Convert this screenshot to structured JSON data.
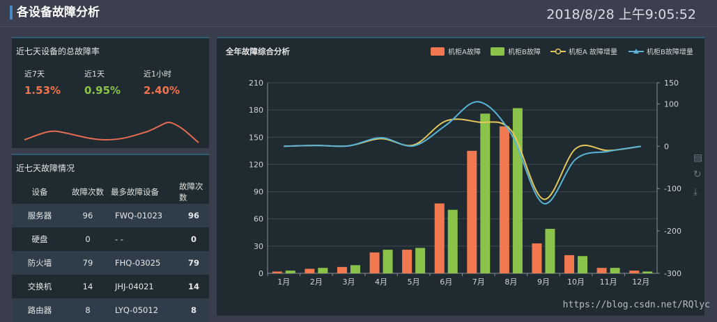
{
  "header": {
    "title": "各设备故障分析",
    "clock": "2018/8/28 上午9:05:52"
  },
  "rate_panel": {
    "title": "近七天设备的总故障率",
    "rates": [
      {
        "label": "近7天",
        "value": "1.53%",
        "color": "#f2734d"
      },
      {
        "label": "近1天",
        "value": "0.95%",
        "color": "#8bc34a"
      },
      {
        "label": "近1小时",
        "value": "2.40%",
        "color": "#f2734d"
      }
    ],
    "sparkline_color": "#e66c52"
  },
  "fault_panel": {
    "title": "近七天故障情况",
    "headers": [
      "设备",
      "故障次数",
      "最多故障设备",
      "故障次数"
    ],
    "rows": [
      {
        "device": "服务器",
        "count": "96",
        "top_device": "FWQ-01023",
        "top_count": "96"
      },
      {
        "device": "硬盘",
        "count": "0",
        "top_device": "- -",
        "top_count": "0"
      },
      {
        "device": "防火墙",
        "count": "79",
        "top_device": "FHQ-03025",
        "top_count": "79"
      },
      {
        "device": "交换机",
        "count": "14",
        "top_device": "JHJ-04021",
        "top_count": "14"
      },
      {
        "device": "路由器",
        "count": "8",
        "top_device": "LYQ-05012",
        "top_count": "8"
      }
    ]
  },
  "chart_panel": {
    "title": "全年故障综合分析"
  },
  "watermark": "https://blog.csdn.net/RQlyc",
  "chart_data": {
    "type": "bar",
    "categories": [
      "1月",
      "2月",
      "3月",
      "4月",
      "5月",
      "6月",
      "7月",
      "8月",
      "9月",
      "10月",
      "11月",
      "12月"
    ],
    "series": [
      {
        "name": "机柜A故障",
        "type": "bar",
        "axis": "left",
        "color": "#f2794f",
        "values": [
          2,
          5,
          7,
          23,
          26,
          77,
          135,
          162,
          33,
          20,
          6,
          3
        ]
      },
      {
        "name": "机柜B故障",
        "type": "bar",
        "axis": "left",
        "color": "#8bc34a",
        "values": [
          3,
          6,
          9,
          26,
          28,
          70,
          176,
          182,
          49,
          19,
          6,
          2
        ]
      },
      {
        "name": "机柜A 故障增量",
        "type": "line",
        "axis": "right",
        "color": "#e5c85a",
        "values": [
          0,
          2,
          1,
          18,
          3,
          60,
          57,
          38,
          -125,
          -5,
          -10,
          0
        ]
      },
      {
        "name": "机柜B故障增量",
        "type": "line",
        "axis": "right",
        "color": "#5ab4d6",
        "values": [
          0,
          2,
          1,
          20,
          1,
          50,
          105,
          30,
          -135,
          -30,
          -12,
          0
        ]
      }
    ],
    "y_left": {
      "min": 0,
      "max": 210,
      "ticks": [
        0,
        30,
        60,
        90,
        120,
        150,
        180,
        210
      ]
    },
    "y_right": {
      "min": -300,
      "max": 150,
      "ticks": [
        -300,
        -200,
        -100,
        0,
        100,
        150
      ]
    },
    "legend_position": "top-right"
  }
}
